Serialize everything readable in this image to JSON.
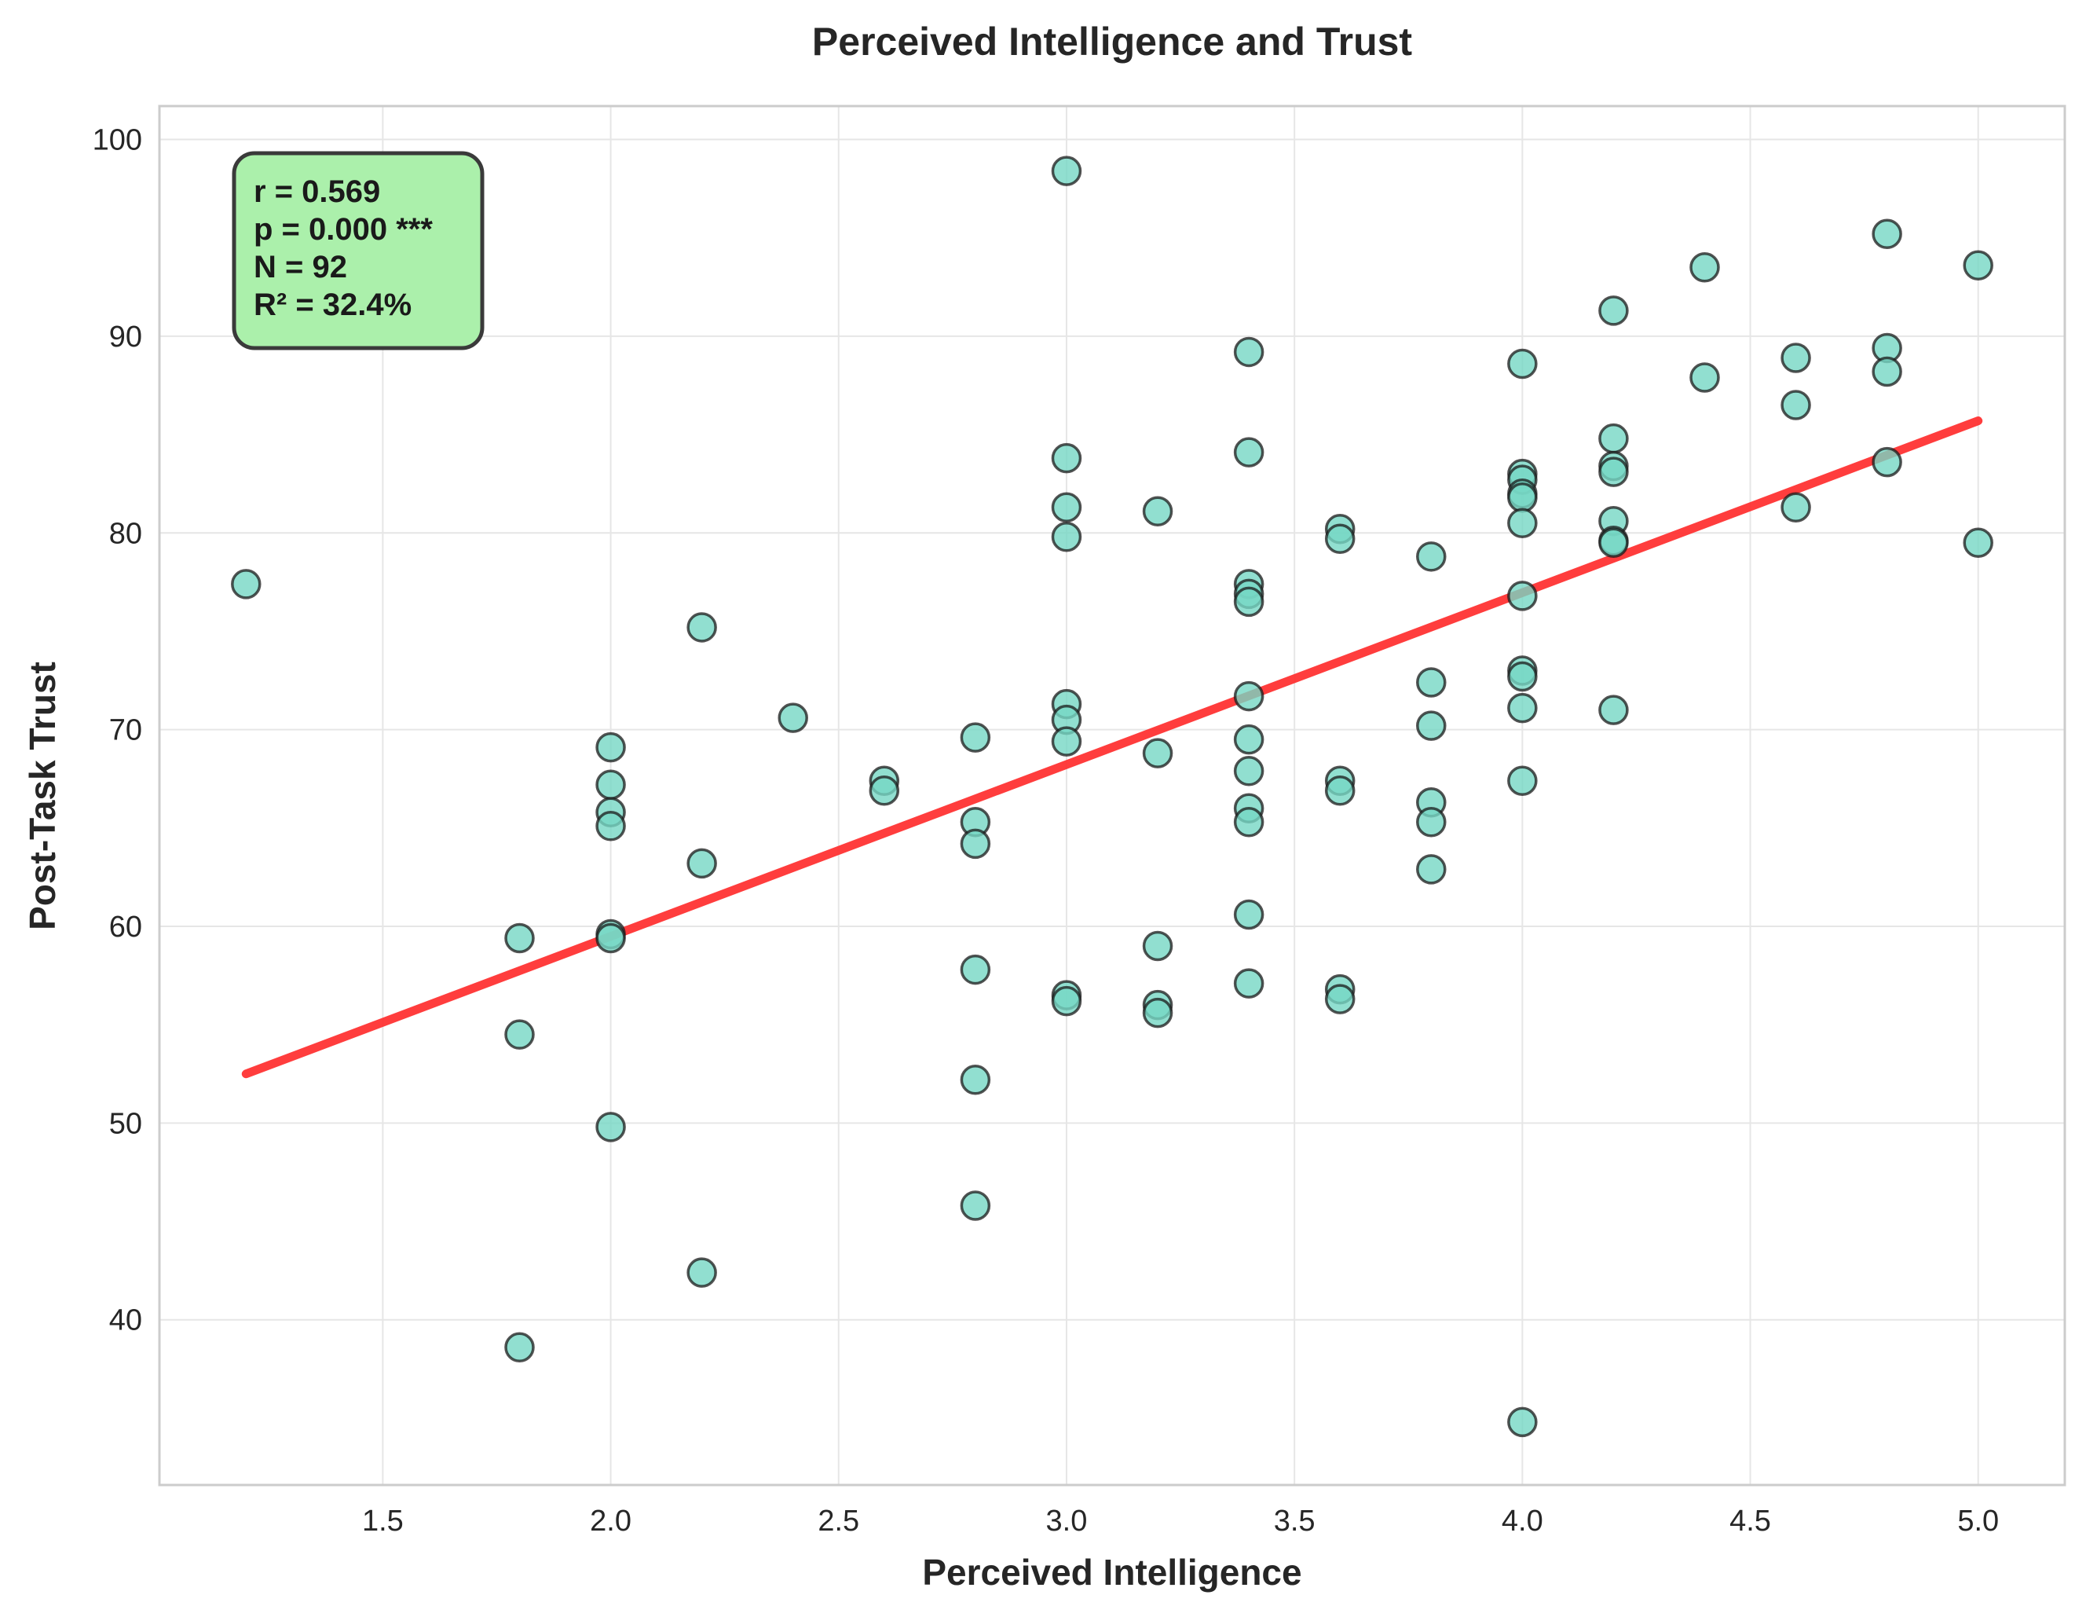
{
  "chart_data": {
    "type": "scatter",
    "title": "Perceived Intelligence and Trust",
    "xlabel": "Perceived Intelligence",
    "ylabel": "Post-Task Trust",
    "xlim": [
      1.01,
      5.19
    ],
    "ylim": [
      31.6,
      101.7
    ],
    "xticks": [
      {
        "value": 1.5,
        "label": "1.5"
      },
      {
        "value": 2.0,
        "label": "2.0"
      },
      {
        "value": 2.5,
        "label": "2.5"
      },
      {
        "value": 3.0,
        "label": "3.0"
      },
      {
        "value": 3.5,
        "label": "3.5"
      },
      {
        "value": 4.0,
        "label": "4.0"
      },
      {
        "value": 4.5,
        "label": "4.5"
      },
      {
        "value": 5.0,
        "label": "5.0"
      }
    ],
    "yticks": [
      {
        "value": 40,
        "label": "40"
      },
      {
        "value": 50,
        "label": "50"
      },
      {
        "value": 60,
        "label": "60"
      },
      {
        "value": 70,
        "label": "70"
      },
      {
        "value": 80,
        "label": "80"
      },
      {
        "value": 90,
        "label": "90"
      },
      {
        "value": 100,
        "label": "100"
      }
    ],
    "grid": true,
    "series": [
      {
        "marker_color": "#76d7c4",
        "edge_color": "#1a1a1a",
        "points": [
          {
            "x": 1.2,
            "y": 77.4
          },
          {
            "x": 1.8,
            "y": 59.4
          },
          {
            "x": 1.8,
            "y": 54.5
          },
          {
            "x": 1.8,
            "y": 38.6
          },
          {
            "x": 2.0,
            "y": 69.1
          },
          {
            "x": 2.0,
            "y": 67.2
          },
          {
            "x": 2.0,
            "y": 65.8
          },
          {
            "x": 2.0,
            "y": 65.1
          },
          {
            "x": 2.0,
            "y": 59.6
          },
          {
            "x": 2.0,
            "y": 59.4
          },
          {
            "x": 2.0,
            "y": 49.8
          },
          {
            "x": 2.2,
            "y": 75.2
          },
          {
            "x": 2.2,
            "y": 63.2
          },
          {
            "x": 2.2,
            "y": 42.4
          },
          {
            "x": 2.4,
            "y": 70.6
          },
          {
            "x": 2.6,
            "y": 67.4
          },
          {
            "x": 2.6,
            "y": 66.9
          },
          {
            "x": 2.8,
            "y": 69.6
          },
          {
            "x": 2.8,
            "y": 65.3
          },
          {
            "x": 2.8,
            "y": 64.2
          },
          {
            "x": 2.8,
            "y": 57.8
          },
          {
            "x": 2.8,
            "y": 52.2
          },
          {
            "x": 2.8,
            "y": 45.8
          },
          {
            "x": 3.0,
            "y": 98.4
          },
          {
            "x": 3.0,
            "y": 83.8
          },
          {
            "x": 3.0,
            "y": 81.3
          },
          {
            "x": 3.0,
            "y": 79.8
          },
          {
            "x": 3.0,
            "y": 71.3
          },
          {
            "x": 3.0,
            "y": 70.5
          },
          {
            "x": 3.0,
            "y": 69.4
          },
          {
            "x": 3.0,
            "y": 56.5
          },
          {
            "x": 3.0,
            "y": 56.2
          },
          {
            "x": 3.2,
            "y": 81.1
          },
          {
            "x": 3.2,
            "y": 68.8
          },
          {
            "x": 3.2,
            "y": 59.0
          },
          {
            "x": 3.2,
            "y": 56.0
          },
          {
            "x": 3.2,
            "y": 55.6
          },
          {
            "x": 3.4,
            "y": 89.2
          },
          {
            "x": 3.4,
            "y": 84.1
          },
          {
            "x": 3.4,
            "y": 77.4
          },
          {
            "x": 3.4,
            "y": 76.9
          },
          {
            "x": 3.4,
            "y": 76.5
          },
          {
            "x": 3.4,
            "y": 71.7
          },
          {
            "x": 3.4,
            "y": 69.5
          },
          {
            "x": 3.4,
            "y": 67.9
          },
          {
            "x": 3.4,
            "y": 66.0
          },
          {
            "x": 3.4,
            "y": 65.3
          },
          {
            "x": 3.4,
            "y": 60.6
          },
          {
            "x": 3.4,
            "y": 57.1
          },
          {
            "x": 3.6,
            "y": 80.2
          },
          {
            "x": 3.6,
            "y": 79.7
          },
          {
            "x": 3.6,
            "y": 67.4
          },
          {
            "x": 3.6,
            "y": 66.9
          },
          {
            "x": 3.6,
            "y": 56.8
          },
          {
            "x": 3.6,
            "y": 56.3
          },
          {
            "x": 3.8,
            "y": 78.8
          },
          {
            "x": 3.8,
            "y": 72.4
          },
          {
            "x": 3.8,
            "y": 70.2
          },
          {
            "x": 3.8,
            "y": 66.3
          },
          {
            "x": 3.8,
            "y": 65.3
          },
          {
            "x": 3.8,
            "y": 62.9
          },
          {
            "x": 4.0,
            "y": 88.6
          },
          {
            "x": 4.0,
            "y": 83.0
          },
          {
            "x": 4.0,
            "y": 82.7
          },
          {
            "x": 4.0,
            "y": 82.0
          },
          {
            "x": 4.0,
            "y": 81.8
          },
          {
            "x": 4.0,
            "y": 80.5
          },
          {
            "x": 4.0,
            "y": 76.8
          },
          {
            "x": 4.0,
            "y": 73.0
          },
          {
            "x": 4.0,
            "y": 72.7
          },
          {
            "x": 4.0,
            "y": 71.1
          },
          {
            "x": 4.0,
            "y": 67.4
          },
          {
            "x": 4.0,
            "y": 34.8
          },
          {
            "x": 4.2,
            "y": 91.3
          },
          {
            "x": 4.2,
            "y": 84.8
          },
          {
            "x": 4.2,
            "y": 83.4
          },
          {
            "x": 4.2,
            "y": 83.1
          },
          {
            "x": 4.2,
            "y": 80.6
          },
          {
            "x": 4.2,
            "y": 79.6
          },
          {
            "x": 4.2,
            "y": 79.5
          },
          {
            "x": 4.2,
            "y": 71.0
          },
          {
            "x": 4.4,
            "y": 93.5
          },
          {
            "x": 4.4,
            "y": 87.9
          },
          {
            "x": 4.6,
            "y": 88.9
          },
          {
            "x": 4.6,
            "y": 86.5
          },
          {
            "x": 4.6,
            "y": 81.3
          },
          {
            "x": 4.8,
            "y": 95.2
          },
          {
            "x": 4.8,
            "y": 89.4
          },
          {
            "x": 4.8,
            "y": 88.2
          },
          {
            "x": 4.8,
            "y": 83.6
          },
          {
            "x": 5.0,
            "y": 93.6
          },
          {
            "x": 5.0,
            "y": 79.5
          }
        ]
      }
    ],
    "regression_line": {
      "color": "#ff3333",
      "x": [
        1.2,
        5.0
      ],
      "y": [
        52.5,
        85.7
      ]
    },
    "annotation": {
      "lines": [
        "r = 0.569",
        "p = 0.000 ***",
        "N = 92",
        "R² = 32.4%"
      ],
      "background": "#abf0ab",
      "position": "top-left"
    },
    "colors": {
      "grid": "#e6e6e6",
      "frame": "#cccccc"
    }
  }
}
